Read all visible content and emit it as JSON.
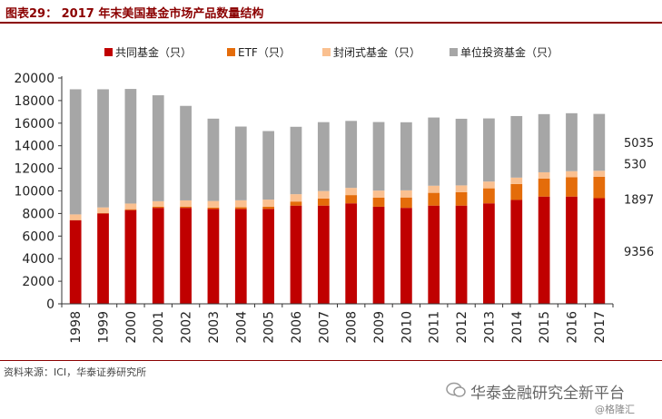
{
  "figure": {
    "title": "图表29： 2017 年末美国基金市场产品数量结构",
    "source": "资料来源：ICI，华泰证券研究所",
    "watermark": "华泰金融研究全新平台",
    "watermark_sub": "@格隆汇"
  },
  "chart_data": {
    "type": "bar",
    "stacked": true,
    "categories": [
      "1998",
      "1999",
      "2000",
      "2001",
      "2002",
      "2003",
      "2004",
      "2005",
      "2006",
      "2007",
      "2008",
      "2009",
      "2010",
      "2011",
      "2012",
      "2013",
      "2014",
      "2015",
      "2016",
      "2017"
    ],
    "series": [
      {
        "name": "共同基金（只）",
        "color": "#c00000",
        "values": [
          7400,
          8000,
          8300,
          8500,
          8500,
          8400,
          8400,
          8400,
          8700,
          8700,
          8900,
          8600,
          8500,
          8700,
          8700,
          8900,
          9200,
          9500,
          9500,
          9356
        ]
      },
      {
        "name": "ETF（只）",
        "color": "#e46c0a",
        "values": [
          20,
          30,
          80,
          100,
          110,
          120,
          150,
          200,
          360,
          630,
          730,
          800,
          920,
          1130,
          1190,
          1330,
          1410,
          1590,
          1720,
          1897
        ]
      },
      {
        "name": "封闭式基金（只）",
        "color": "#fac090",
        "values": [
          500,
          510,
          500,
          490,
          550,
          590,
          620,
          630,
          650,
          660,
          640,
          630,
          630,
          630,
          600,
          600,
          570,
          560,
          530,
          530
        ]
      },
      {
        "name": "单位投资基金（只）",
        "color": "#a6a6a6",
        "values": [
          11080,
          10460,
          10150,
          9380,
          8370,
          7290,
          6530,
          6070,
          5970,
          6100,
          5930,
          6070,
          6030,
          6040,
          5900,
          5590,
          5450,
          5150,
          5130,
          5035
        ]
      }
    ],
    "data_labels": {
      "series_values": [
        "9356",
        "1897",
        "530",
        "5035"
      ]
    },
    "ylim": [
      0,
      20000
    ],
    "yticks": [
      "0",
      "2000",
      "4000",
      "6000",
      "8000",
      "10000",
      "12000",
      "14000",
      "16000",
      "18000",
      "20000"
    ],
    "legend_position": "top",
    "grid": false
  }
}
